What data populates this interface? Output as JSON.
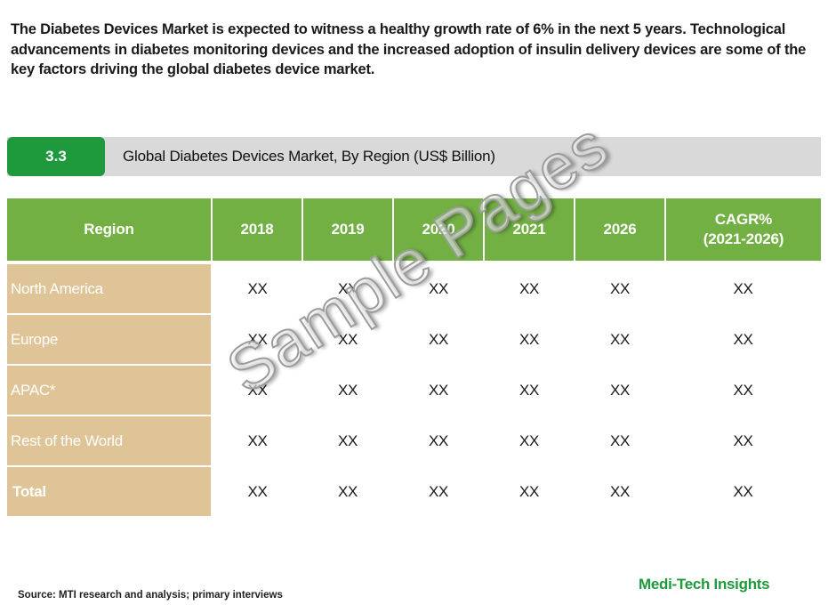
{
  "intro_text": "The Diabetes Devices Market is expected to witness a healthy growth rate of 6% in the next 5 years. Technological advancements in diabetes monitoring devices and the increased adoption of insulin delivery devices are some of the key factors driving the global diabetes device market.",
  "section": {
    "number": "3.3",
    "title": "Global Diabetes Devices Market, By Region (US$ Billion)"
  },
  "table": {
    "headers": [
      "Region",
      "2018",
      "2019",
      "2020",
      "2021",
      "2026",
      "CAGR%",
      "(2021-2026)"
    ],
    "rows": [
      {
        "region": "North America",
        "values": [
          "XX",
          "XX",
          "XX",
          "XX",
          "XX",
          "XX"
        ]
      },
      {
        "region": "Europe",
        "values": [
          "XX",
          "XX",
          "XX",
          "XX",
          "XX",
          "XX"
        ]
      },
      {
        "region": "APAC*",
        "values": [
          "XX",
          "XX",
          "XX",
          "XX",
          "XX",
          "XX"
        ]
      },
      {
        "region": "Rest of the World",
        "values": [
          "XX",
          "XX",
          "XX",
          "XX",
          "XX",
          "XX"
        ]
      },
      {
        "region": "Total",
        "values": [
          "XX",
          "XX",
          "XX",
          "XX",
          "XX",
          "XX"
        ]
      }
    ]
  },
  "watermark": "Sample Pages",
  "source": "Source: MTI research and analysis; primary interviews",
  "brand": "Medi-Tech Insights",
  "colors": {
    "header_green": "#72b043",
    "section_green": "#1e9a3c",
    "region_tan": "#dfc497",
    "bar_gray": "#d9d9d9"
  }
}
